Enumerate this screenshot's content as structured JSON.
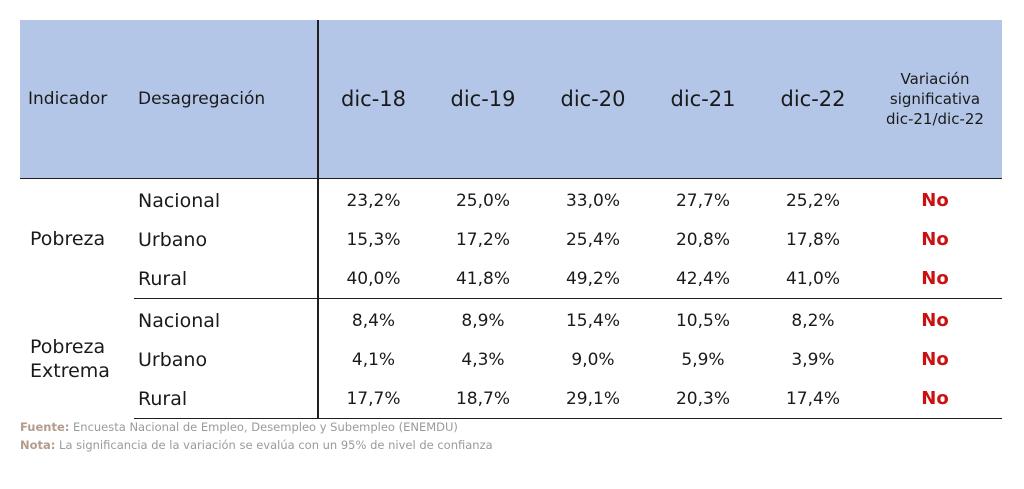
{
  "header": {
    "indicador": "Indicador",
    "desagregacion": "Desagregación",
    "years": [
      "dic-18",
      "dic-19",
      "dic-20",
      "dic-21",
      "dic-22"
    ],
    "variacion_line1": "Variación",
    "variacion_line2": "significativa",
    "variacion_line3": "dic-21/dic-22"
  },
  "groups": [
    {
      "name_line1": "Pobreza",
      "name_line2": "",
      "rows": [
        {
          "label": "Nacional",
          "values": [
            "23,2%",
            "25,0%",
            "33,0%",
            "27,7%",
            "25,2%"
          ],
          "sig": "No"
        },
        {
          "label": "Urbano",
          "values": [
            "15,3%",
            "17,2%",
            "25,4%",
            "20,8%",
            "17,8%"
          ],
          "sig": "No"
        },
        {
          "label": "Rural",
          "values": [
            "40,0%",
            "41,8%",
            "49,2%",
            "42,4%",
            "41,0%"
          ],
          "sig": "No"
        }
      ]
    },
    {
      "name_line1": "Pobreza",
      "name_line2": "Extrema",
      "rows": [
        {
          "label": "Nacional",
          "values": [
            "8,4%",
            "8,9%",
            "15,4%",
            "10,5%",
            "8,2%"
          ],
          "sig": "No"
        },
        {
          "label": "Urbano",
          "values": [
            "4,1%",
            "4,3%",
            "9,0%",
            "5,9%",
            "3,9%"
          ],
          "sig": "No"
        },
        {
          "label": "Rural",
          "values": [
            "17,7%",
            "18,7%",
            "29,1%",
            "20,3%",
            "17,4%"
          ],
          "sig": "No"
        }
      ]
    }
  ],
  "notes": {
    "fuente_label": "Fuente:",
    "fuente_text": " Encuesta Nacional de Empleo, Desempleo y Subempleo (ENEMDU)",
    "nota_label": "Nota:",
    "nota_text": " La significancia de la variación se evalúa con un 95% de nivel de confianza"
  },
  "colors": {
    "header_bg": "#b4c6e7",
    "sig_red": "#cc1010"
  }
}
